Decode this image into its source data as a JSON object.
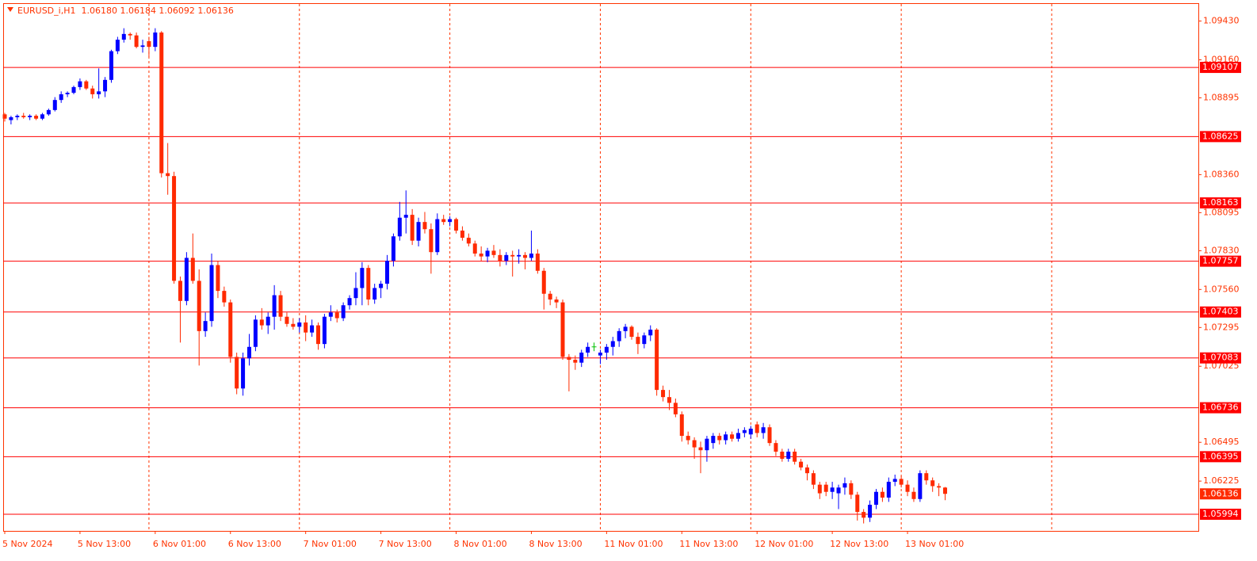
{
  "chart_data": {
    "type": "candlestick",
    "title": "EURUSD_i,H1  1.06180 1.06184 1.06092 1.06136",
    "categories": [
      "5 Nov 2024",
      null,
      null,
      null,
      null,
      null,
      null,
      null,
      null,
      null,
      null,
      null,
      "5 Nov 13:00",
      null,
      null,
      null,
      null,
      null,
      null,
      null,
      null,
      null,
      null,
      null,
      "6 Nov 01:00",
      null,
      null,
      null,
      null,
      null,
      null,
      null,
      null,
      null,
      null,
      null,
      "6 Nov 13:00",
      null,
      null,
      null,
      null,
      null,
      null,
      null,
      null,
      null,
      null,
      null,
      "7 Nov 01:00",
      null,
      null,
      null,
      null,
      null,
      null,
      null,
      null,
      null,
      null,
      null,
      "7 Nov 13:00",
      null,
      null,
      null,
      null,
      null,
      null,
      null,
      null,
      null,
      null,
      null,
      "8 Nov 01:00",
      null,
      null,
      null,
      null,
      null,
      null,
      null,
      null,
      null,
      null,
      null,
      "8 Nov 13:00",
      null,
      null,
      null,
      null,
      null,
      null,
      null,
      null,
      null,
      null,
      null,
      "11 Nov 01:00",
      null,
      null,
      null,
      null,
      null,
      null,
      null,
      null,
      null,
      null,
      null,
      "11 Nov 13:00",
      null,
      null,
      null,
      null,
      null,
      null,
      null,
      null,
      null,
      null,
      null,
      "12 Nov 01:00",
      null,
      null,
      null,
      null,
      null,
      null,
      null,
      null,
      null,
      null,
      null,
      "12 Nov 13:00",
      null,
      null,
      null,
      null,
      null,
      null,
      null,
      null,
      null,
      null,
      null,
      "13 Nov 01:00",
      null,
      null,
      null,
      null,
      null,
      null
    ],
    "ohlc": [
      [
        1.0878,
        1.0879,
        1.0873,
        1.0875
      ],
      [
        1.0874,
        1.0877,
        1.0871,
        1.0876
      ],
      [
        1.0876,
        1.0878,
        1.0874,
        1.0877
      ],
      [
        1.0877,
        1.0879,
        1.0875,
        1.0876
      ],
      [
        1.0876,
        1.0878,
        1.0874,
        1.0877
      ],
      [
        1.0877,
        1.0878,
        1.0874,
        1.0875
      ],
      [
        1.0875,
        1.0879,
        1.0874,
        1.0878
      ],
      [
        1.0878,
        1.0882,
        1.0877,
        1.0881
      ],
      [
        1.0881,
        1.089,
        1.088,
        1.0888
      ],
      [
        1.0888,
        1.0894,
        1.0886,
        1.0892
      ],
      [
        1.0892,
        1.0894,
        1.089,
        1.0893
      ],
      [
        1.0893,
        1.0898,
        1.0892,
        1.0897
      ],
      [
        1.0897,
        1.0903,
        1.0895,
        1.0901
      ],
      [
        1.0901,
        1.0902,
        1.0895,
        1.0896
      ],
      [
        1.0896,
        1.0898,
        1.0889,
        1.0892
      ],
      [
        1.0892,
        1.091,
        1.0889,
        1.0894
      ],
      [
        1.0894,
        1.0904,
        1.089,
        1.0902
      ],
      [
        1.0902,
        1.0923,
        1.09,
        1.0922
      ],
      [
        1.0922,
        1.0932,
        1.092,
        1.093
      ],
      [
        1.093,
        1.0938,
        1.0928,
        1.0934
      ],
      [
        1.0934,
        1.0935,
        1.093,
        1.0933
      ],
      [
        1.0933,
        1.0935,
        1.0924,
        1.0925
      ],
      [
        1.0925,
        1.093,
        1.0921,
        1.0926
      ],
      [
        1.0929,
        1.0932,
        1.0918,
        1.0925
      ],
      [
        1.0925,
        1.0938,
        1.0922,
        1.0935
      ],
      [
        1.0935,
        1.0936,
        1.0834,
        1.0837
      ],
      [
        1.0837,
        1.0858,
        1.0822,
        1.0835
      ],
      [
        1.0835,
        1.0838,
        1.076,
        1.0762
      ],
      [
        1.0762,
        1.0765,
        1.0719,
        1.0748
      ],
      [
        1.0748,
        1.0782,
        1.0745,
        1.0778
      ],
      [
        1.0778,
        1.0795,
        1.076,
        1.0762
      ],
      [
        1.0762,
        1.077,
        1.0703,
        1.0727
      ],
      [
        1.0727,
        1.074,
        1.0723,
        1.0734
      ],
      [
        1.0734,
        1.0781,
        1.073,
        1.0773
      ],
      [
        1.0773,
        1.0776,
        1.075,
        1.0755
      ],
      [
        1.0755,
        1.0758,
        1.0744,
        1.0747
      ],
      [
        1.0747,
        1.0749,
        1.0705,
        1.0709
      ],
      [
        1.0709,
        1.0712,
        1.0683,
        1.0687
      ],
      [
        1.0687,
        1.0712,
        1.0682,
        1.0708
      ],
      [
        1.0708,
        1.0725,
        1.0703,
        1.0716
      ],
      [
        1.0716,
        1.0738,
        1.0713,
        1.0735
      ],
      [
        1.0735,
        1.0743,
        1.0728,
        1.0731
      ],
      [
        1.0731,
        1.074,
        1.0725,
        1.0737
      ],
      [
        1.0737,
        1.0759,
        1.0728,
        1.0752
      ],
      [
        1.0752,
        1.0755,
        1.0734,
        1.0737
      ],
      [
        1.0737,
        1.074,
        1.073,
        1.0732
      ],
      [
        1.0732,
        1.0736,
        1.0728,
        1.073
      ],
      [
        1.073,
        1.0736,
        1.0726,
        1.0733
      ],
      [
        1.0733,
        1.0738,
        1.072,
        1.0726
      ],
      [
        1.0726,
        1.0735,
        1.0723,
        1.0731
      ],
      [
        1.0731,
        1.0733,
        1.0714,
        1.0718
      ],
      [
        1.0718,
        1.0739,
        1.0715,
        1.0737
      ],
      [
        1.0737,
        1.0745,
        1.0734,
        1.074
      ],
      [
        1.074,
        1.0742,
        1.0733,
        1.0736
      ],
      [
        1.0736,
        1.0747,
        1.0734,
        1.0745
      ],
      [
        1.0745,
        1.0752,
        1.0742,
        1.075
      ],
      [
        1.075,
        1.0768,
        1.0745,
        1.0757
      ],
      [
        1.0757,
        1.0775,
        1.0745,
        1.0771
      ],
      [
        1.0771,
        1.0773,
        1.0745,
        1.0749
      ],
      [
        1.0749,
        1.076,
        1.0746,
        1.0757
      ],
      [
        1.0757,
        1.0762,
        1.075,
        1.076
      ],
      [
        1.076,
        1.078,
        1.0756,
        1.0776
      ],
      [
        1.0776,
        1.0795,
        1.0772,
        1.0793
      ],
      [
        1.0793,
        1.0817,
        1.079,
        1.0806
      ],
      [
        1.0806,
        1.0825,
        1.0795,
        1.0808
      ],
      [
        1.0808,
        1.0812,
        1.0787,
        1.079
      ],
      [
        1.079,
        1.0806,
        1.0786,
        1.0803
      ],
      [
        1.0803,
        1.081,
        1.0795,
        1.0798
      ],
      [
        1.0798,
        1.0802,
        1.0767,
        1.0782
      ],
      [
        1.0782,
        1.0809,
        1.078,
        1.0805
      ],
      [
        1.0805,
        1.0808,
        1.0801,
        1.0803
      ],
      [
        1.0803,
        1.0807,
        1.08,
        1.0805
      ],
      [
        1.0805,
        1.0806,
        1.0795,
        1.0797
      ],
      [
        1.0797,
        1.08,
        1.079,
        1.0792
      ],
      [
        1.0792,
        1.0795,
        1.0786,
        1.0788
      ],
      [
        1.0788,
        1.079,
        1.0779,
        1.0781
      ],
      [
        1.0781,
        1.0786,
        1.0776,
        1.0779
      ],
      [
        1.0779,
        1.0785,
        1.0775,
        1.0783
      ],
      [
        1.0783,
        1.0787,
        1.0778,
        1.078
      ],
      [
        1.078,
        1.0784,
        1.0772,
        1.0776
      ],
      [
        1.0776,
        1.0782,
        1.0773,
        1.078
      ],
      [
        1.078,
        1.0783,
        1.0765,
        1.0779
      ],
      [
        1.0779,
        1.0784,
        1.0774,
        1.078
      ],
      [
        1.078,
        1.0782,
        1.077,
        1.0778
      ],
      [
        1.0778,
        1.0797,
        1.0776,
        1.0781
      ],
      [
        1.0781,
        1.0784,
        1.0767,
        1.0769
      ],
      [
        1.0769,
        1.0771,
        1.0742,
        1.0753
      ],
      [
        1.0753,
        1.0755,
        1.0745,
        1.0749
      ],
      [
        1.0749,
        1.0751,
        1.0743,
        1.0747
      ],
      [
        1.0747,
        1.0749,
        1.0707,
        1.0709
      ],
      [
        1.0709,
        1.0711,
        1.0685,
        1.0707
      ],
      [
        1.0707,
        1.071,
        1.07,
        1.0705
      ],
      [
        1.0705,
        1.0714,
        1.0702,
        1.0712
      ],
      [
        1.0712,
        1.0719,
        1.0709,
        1.0716
      ],
      [
        1.0716,
        1.0719,
        1.0713,
        1.0716
      ],
      [
        1.071,
        1.0714,
        1.0704,
        1.0712
      ],
      [
        1.0712,
        1.0718,
        1.0707,
        1.0716
      ],
      [
        1.0716,
        1.0723,
        1.071,
        1.072
      ],
      [
        1.072,
        1.0729,
        1.0716,
        1.0727
      ],
      [
        1.0727,
        1.0732,
        1.0722,
        1.073
      ],
      [
        1.073,
        1.0731,
        1.0721,
        1.0723
      ],
      [
        1.0723,
        1.0726,
        1.0711,
        1.0718
      ],
      [
        1.0718,
        1.0726,
        1.0715,
        1.0724
      ],
      [
        1.0724,
        1.0731,
        1.072,
        1.0728
      ],
      [
        1.0728,
        1.0729,
        1.0682,
        1.0686
      ],
      [
        1.0686,
        1.0689,
        1.0678,
        1.0681
      ],
      [
        1.0681,
        1.0686,
        1.0672,
        1.0677
      ],
      [
        1.0677,
        1.068,
        1.0667,
        1.0669
      ],
      [
        1.0669,
        1.0671,
        1.065,
        1.0654
      ],
      [
        1.0654,
        1.0657,
        1.0648,
        1.0651
      ],
      [
        1.0651,
        1.0653,
        1.0638,
        1.0646
      ],
      [
        1.0646,
        1.065,
        1.0628,
        1.0644
      ],
      [
        1.0644,
        1.0654,
        1.0636,
        1.0652
      ],
      [
        1.0649,
        1.0656,
        1.0645,
        1.0654
      ],
      [
        1.0654,
        1.0656,
        1.0648,
        1.0651
      ],
      [
        1.0651,
        1.0657,
        1.0648,
        1.0655
      ],
      [
        1.0655,
        1.0657,
        1.065,
        1.0652
      ],
      [
        1.0652,
        1.0659,
        1.065,
        1.0656
      ],
      [
        1.0656,
        1.066,
        1.0653,
        1.0658
      ],
      [
        1.0655,
        1.0661,
        1.0652,
        1.0659
      ],
      [
        1.0662,
        1.0664,
        1.0653,
        1.0656
      ],
      [
        1.0656,
        1.0663,
        1.0652,
        1.066
      ],
      [
        1.066,
        1.0662,
        1.0647,
        1.0649
      ],
      [
        1.0649,
        1.0651,
        1.064,
        1.0643
      ],
      [
        1.0643,
        1.0645,
        1.0636,
        1.0638
      ],
      [
        1.0638,
        1.0645,
        1.0636,
        1.0643
      ],
      [
        1.0643,
        1.0645,
        1.0634,
        1.0636
      ],
      [
        1.0636,
        1.0638,
        1.063,
        1.0632
      ],
      [
        1.0632,
        1.0634,
        1.0623,
        1.0628
      ],
      [
        1.0628,
        1.063,
        1.0617,
        1.062
      ],
      [
        1.062,
        1.0622,
        1.061,
        1.0614
      ],
      [
        1.062,
        1.0622,
        1.0612,
        1.0615
      ],
      [
        1.0615,
        1.0622,
        1.061,
        1.0618
      ],
      [
        1.0614,
        1.062,
        1.0603,
        1.0618
      ],
      [
        1.0618,
        1.0625,
        1.0613,
        1.0621
      ],
      [
        1.0621,
        1.0623,
        1.061,
        1.0613
      ],
      [
        1.0613,
        1.0615,
        1.0595,
        1.0601
      ],
      [
        1.0601,
        1.0603,
        1.0593,
        1.0597
      ],
      [
        1.0597,
        1.0609,
        1.0594,
        1.0606
      ],
      [
        1.0606,
        1.0617,
        1.0603,
        1.0615
      ],
      [
        1.0615,
        1.0618,
        1.0608,
        1.0611
      ],
      [
        1.0611,
        1.0625,
        1.0608,
        1.0622
      ],
      [
        1.0622,
        1.0627,
        1.0619,
        1.0624
      ],
      [
        1.0624,
        1.0626,
        1.0618,
        1.062
      ],
      [
        1.062,
        1.0623,
        1.0612,
        1.0615
      ],
      [
        1.0615,
        1.0618,
        1.0608,
        1.061
      ],
      [
        1.061,
        1.063,
        1.0608,
        1.0628
      ],
      [
        1.0628,
        1.063,
        1.062,
        1.0623
      ],
      [
        1.0623,
        1.0625,
        1.0615,
        1.0619
      ],
      [
        1.0619,
        1.0621,
        1.0612,
        1.0618
      ],
      [
        1.0618,
        1.06184,
        1.06092,
        1.06136
      ]
    ],
    "colors": {
      "up": "#0000ff",
      "down": "#ff2a00",
      "doji": "#00c000"
    },
    "ylim": [
      1.05878,
      1.09549
    ],
    "yticks": [
      {
        "value": 1.0943,
        "label": "1.09430"
      },
      {
        "value": 1.0916,
        "label": "1.09160"
      },
      1.08895,
      {
        "value": 1.0836,
        "label": "1.08360"
      },
      1.08095,
      {
        "value": 1.0783,
        "label": "1.07830"
      },
      {
        "value": 1.0756,
        "label": "1.07560"
      },
      1.07295,
      1.07025,
      1.06495,
      1.06225
    ],
    "levels": [
      1.09107,
      1.08625,
      1.08163,
      1.07757,
      1.07403,
      1.07083,
      1.06736,
      1.06395,
      1.05994
    ],
    "level_color": "#ff0000",
    "grid": false
  }
}
